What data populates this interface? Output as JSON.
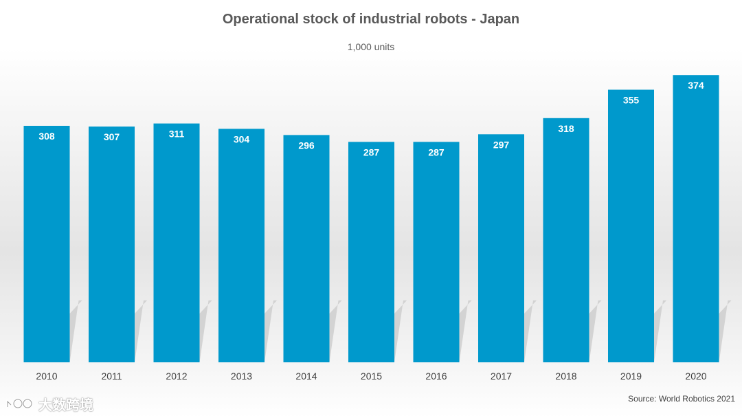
{
  "chart_data": {
    "type": "bar",
    "title": "Operational stock of industrial robots - Japan",
    "subtitle": "1,000 units",
    "categories": [
      "2010",
      "2011",
      "2012",
      "2013",
      "2014",
      "2015",
      "2016",
      "2017",
      "2018",
      "2019",
      "2020"
    ],
    "values": [
      308,
      307,
      311,
      304,
      296,
      287,
      287,
      297,
      318,
      355,
      374
    ],
    "xlabel": "",
    "ylabel": "",
    "ylim": [
      0,
      400
    ],
    "grid": false,
    "legend": "none",
    "bar_color": "#0099cc",
    "label_color": "#ffffff"
  },
  "source": "Source: World Robotics 2021",
  "watermark": {
    "text": "大数跨境",
    "icon": "brand-logo-icon"
  }
}
